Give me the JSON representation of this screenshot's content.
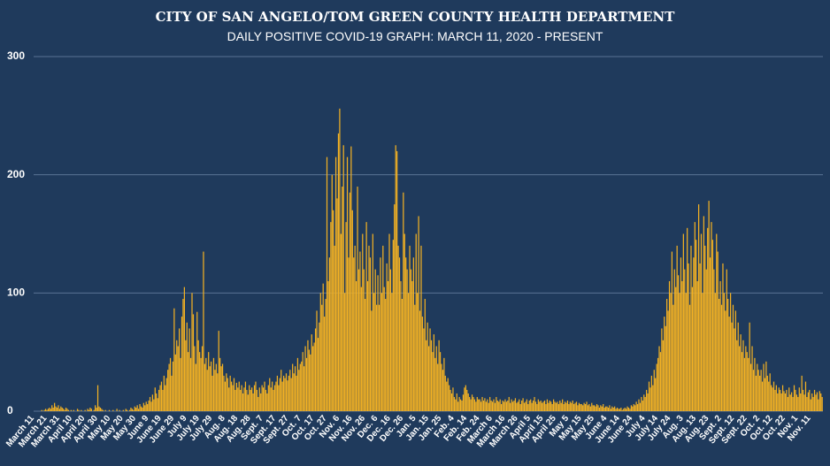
{
  "chart_data": {
    "type": "bar",
    "title": "CITY OF SAN ANGELO/TOM GREEN COUNTY HEALTH DEPARTMENT",
    "subtitle": "DAILY POSITIVE COVID-19 GRAPH: MARCH 11, 2020 - PRESENT",
    "color": "#f4b223",
    "grid": true,
    "ylim": [
      0,
      300
    ],
    "yticks": [
      0,
      100,
      200,
      300
    ],
    "categories": [
      "March 11",
      null,
      null,
      null,
      null,
      null,
      null,
      null,
      null,
      null,
      "March 21",
      null,
      null,
      null,
      null,
      null,
      null,
      null,
      null,
      null,
      "March 31",
      null,
      null,
      null,
      null,
      null,
      null,
      null,
      null,
      null,
      "April 10",
      null,
      null,
      null,
      null,
      null,
      null,
      null,
      null,
      null,
      "April 20",
      null,
      null,
      null,
      null,
      null,
      null,
      null,
      null,
      null,
      "April 30",
      null,
      null,
      null,
      null,
      null,
      null,
      null,
      null,
      null,
      "May 10",
      null,
      null,
      null,
      null,
      null,
      null,
      null,
      null,
      null,
      "May 20",
      null,
      null,
      null,
      null,
      null,
      null,
      null,
      null,
      null,
      "May 30",
      null,
      null,
      null,
      null,
      null,
      null,
      null,
      null,
      null,
      "June 9",
      null,
      null,
      null,
      null,
      null,
      null,
      null,
      null,
      null,
      "June 19",
      null,
      null,
      null,
      null,
      null,
      null,
      null,
      null,
      null,
      "June 29",
      null,
      null,
      null,
      null,
      null,
      null,
      null,
      null,
      null,
      "July 9",
      null,
      null,
      null,
      null,
      null,
      null,
      null,
      null,
      null,
      "July 19",
      null,
      null,
      null,
      null,
      null,
      null,
      null,
      null,
      null,
      "July 29",
      null,
      null,
      null,
      null,
      null,
      null,
      null,
      null,
      null,
      "Aug. 8",
      null,
      null,
      null,
      null,
      null,
      null,
      null,
      null,
      null,
      "Aug. 18",
      null,
      null,
      null,
      null,
      null,
      null,
      null,
      null,
      null,
      "Aug. 28",
      null,
      null,
      null,
      null,
      null,
      null,
      null,
      null,
      null,
      "Sept. 7",
      null,
      null,
      null,
      null,
      null,
      null,
      null,
      null,
      null,
      "Sept. 17",
      null,
      null,
      null,
      null,
      null,
      null,
      null,
      null,
      null,
      "Sept. 27",
      null,
      null,
      null,
      null,
      null,
      null,
      null,
      null,
      null,
      "Oct. 7",
      null,
      null,
      null,
      null,
      null,
      null,
      null,
      null,
      null,
      "Oct. 17",
      null,
      null,
      null,
      null,
      null,
      null,
      null,
      null,
      null,
      "Oct. 27",
      null,
      null,
      null,
      null,
      null,
      null,
      null,
      null,
      null,
      "Nov. 6",
      null,
      null,
      null,
      null,
      null,
      null,
      null,
      null,
      null,
      "Nov. 16",
      null,
      null,
      null,
      null,
      null,
      null,
      null,
      null,
      null,
      "Nov. 26",
      null,
      null,
      null,
      null,
      null,
      null,
      null,
      null,
      null,
      "Dec. 6",
      null,
      null,
      null,
      null,
      null,
      null,
      null,
      null,
      null,
      "Dec. 16",
      null,
      null,
      null,
      null,
      null,
      null,
      null,
      null,
      null,
      "Dec. 26",
      null,
      null,
      null,
      null,
      null,
      null,
      null,
      null,
      null,
      "Jan. 5",
      null,
      null,
      null,
      null,
      null,
      null,
      null,
      null,
      null,
      "Jan. 15",
      null,
      null,
      null,
      null,
      null,
      null,
      null,
      null,
      null,
      "Jan. 25",
      null,
      null,
      null,
      null,
      null,
      null,
      null,
      null,
      null,
      "Feb. 4",
      null,
      null,
      null,
      null,
      null,
      null,
      null,
      null,
      null,
      "Feb. 14",
      null,
      null,
      null,
      null,
      null,
      null,
      null,
      null,
      null,
      "Feb. 24",
      null,
      null,
      null,
      null,
      null,
      null,
      null,
      null,
      null,
      "March 6",
      null,
      null,
      null,
      null,
      null,
      null,
      null,
      null,
      null,
      "March 16",
      null,
      null,
      null,
      null,
      null,
      null,
      null,
      null,
      null,
      "March 26",
      null,
      null,
      null,
      null,
      null,
      null,
      null,
      null,
      null,
      "April 5",
      null,
      null,
      null,
      null,
      null,
      null,
      null,
      null,
      null,
      "April 15",
      null,
      null,
      null,
      null,
      null,
      null,
      null,
      null,
      null,
      "April 25",
      null,
      null,
      null,
      null,
      null,
      null,
      null,
      null,
      null,
      "May 5",
      null,
      null,
      null,
      null,
      null,
      null,
      null,
      null,
      null,
      "May 15",
      null,
      null,
      null,
      null,
      null,
      null,
      null,
      null,
      null,
      "May 25",
      null,
      null,
      null,
      null,
      null,
      null,
      null,
      null,
      null,
      "June 4",
      null,
      null,
      null,
      null,
      null,
      null,
      null,
      null,
      null,
      "June 14",
      null,
      null,
      null,
      null,
      null,
      null,
      null,
      null,
      null,
      "June 24",
      null,
      null,
      null,
      null,
      null,
      null,
      null,
      null,
      null,
      "July 4",
      null,
      null,
      null,
      null,
      null,
      null,
      null,
      null,
      null,
      "July 14",
      null,
      null,
      null,
      null,
      null,
      null,
      null,
      null,
      null,
      "July 24",
      null,
      null,
      null,
      null,
      null,
      null,
      null,
      null,
      null,
      "Aug. 3",
      null,
      null,
      null,
      null,
      null,
      null,
      null,
      null,
      null,
      "Aug. 13",
      null,
      null,
      null,
      null,
      null,
      null,
      null,
      null,
      null,
      "Aug. 23",
      null,
      null,
      null,
      null,
      null,
      null,
      null,
      null,
      null,
      "Sept. 2",
      null,
      null,
      null,
      null,
      null,
      null,
      null,
      null,
      null,
      "Sept. 12",
      null,
      null,
      null,
      null,
      null,
      null,
      null,
      null,
      null,
      "Sept. 22",
      null,
      null,
      null,
      null,
      null,
      null,
      null,
      null,
      null,
      "Oct. 2",
      null,
      null,
      null,
      null,
      null,
      null,
      null,
      null,
      null,
      "Oct. 12",
      null,
      null,
      null,
      null,
      null,
      null,
      null,
      null,
      null,
      "Oct. 22",
      null,
      null,
      null,
      null,
      null,
      null,
      null,
      null,
      null,
      "Nov. 1",
      null,
      null,
      null,
      null,
      null,
      null,
      null,
      null,
      null,
      "Nov. 11",
      null,
      null,
      null,
      null,
      null,
      null,
      null,
      null,
      null
    ],
    "values": [
      0,
      0,
      0,
      0,
      0,
      0,
      1,
      0,
      1,
      2,
      1,
      2,
      3,
      2,
      5,
      3,
      7,
      4,
      3,
      5,
      2,
      4,
      3,
      2,
      1,
      3,
      2,
      1,
      0,
      1,
      0,
      1,
      0,
      0,
      2,
      1,
      0,
      1,
      0,
      0,
      1,
      0,
      2,
      1,
      3,
      2,
      0,
      1,
      5,
      3,
      22,
      4,
      3,
      2,
      1,
      0,
      1,
      0,
      0,
      1,
      0,
      0,
      1,
      0,
      0,
      2,
      0,
      1,
      0,
      0,
      1,
      0,
      2,
      1,
      0,
      1,
      3,
      2,
      1,
      4,
      3,
      5,
      2,
      6,
      4,
      3,
      7,
      5,
      8,
      6,
      9,
      12,
      8,
      14,
      10,
      20,
      15,
      11,
      18,
      22,
      25,
      18,
      30,
      22,
      28,
      35,
      40,
      45,
      30,
      42,
      87,
      48,
      60,
      55,
      70,
      45,
      80,
      95,
      105,
      60,
      75,
      50,
      70,
      45,
      100,
      82,
      55,
      40,
      84,
      60,
      50,
      45,
      55,
      135,
      40,
      45,
      35,
      50,
      38,
      42,
      30,
      45,
      35,
      40,
      32,
      68,
      45,
      38,
      40,
      30,
      25,
      32,
      28,
      20,
      30,
      25,
      22,
      28,
      18,
      24,
      20,
      25,
      18,
      22,
      15,
      20,
      25,
      18,
      14,
      22,
      18,
      20,
      15,
      22,
      25,
      18,
      12,
      20,
      15,
      22,
      20,
      25,
      18,
      15,
      22,
      28,
      20,
      25,
      18,
      22,
      25,
      30,
      22,
      28,
      35,
      25,
      30,
      28,
      32,
      26,
      30,
      35,
      28,
      40,
      32,
      38,
      30,
      45,
      35,
      40,
      42,
      50,
      38,
      55,
      45,
      60,
      52,
      48,
      65,
      55,
      58,
      70,
      85,
      62,
      75,
      100,
      90,
      108,
      80,
      95,
      215,
      110,
      130,
      160,
      200,
      170,
      140,
      215,
      180,
      235,
      256,
      150,
      190,
      225,
      100,
      160,
      215,
      130,
      185,
      224,
      170,
      130,
      140,
      110,
      190,
      120,
      135,
      105,
      150,
      120,
      95,
      160,
      110,
      140,
      130,
      85,
      150,
      100,
      120,
      90,
      115,
      90,
      130,
      100,
      140,
      105,
      95,
      125,
      110,
      150,
      120,
      100,
      145,
      175,
      225,
      220,
      140,
      130,
      110,
      95,
      185,
      150,
      130,
      120,
      100,
      140,
      120,
      110,
      130,
      90,
      150,
      100,
      165,
      85,
      140,
      80,
      70,
      95,
      60,
      75,
      55,
      70,
      60,
      50,
      65,
      45,
      55,
      40,
      60,
      50,
      40,
      35,
      45,
      30,
      25,
      28,
      22,
      18,
      15,
      20,
      12,
      10,
      15,
      8,
      12,
      10,
      9,
      14,
      20,
      22,
      18,
      15,
      12,
      10,
      14,
      12,
      10,
      8,
      12,
      10,
      10,
      8,
      12,
      9,
      11,
      8,
      10,
      7,
      12,
      9,
      8,
      10,
      7,
      12,
      9,
      8,
      10,
      6,
      9,
      8,
      10,
      8,
      9,
      12,
      7,
      10,
      8,
      9,
      11,
      7,
      8,
      10,
      6,
      9,
      11,
      7,
      8,
      10,
      6,
      9,
      10,
      7,
      9,
      12,
      8,
      6,
      10,
      8,
      9,
      7,
      8,
      9,
      6,
      10,
      7,
      9,
      8,
      6,
      10,
      8,
      7,
      8,
      6,
      9,
      7,
      10,
      6,
      8,
      7,
      9,
      6,
      8,
      7,
      9,
      6,
      7,
      8,
      5,
      7,
      6,
      6,
      5,
      7,
      6,
      8,
      5,
      6,
      4,
      7,
      5,
      5,
      4,
      6,
      5,
      3,
      5,
      4,
      6,
      3,
      4,
      4,
      3,
      5,
      2,
      4,
      3,
      4,
      2,
      3,
      2,
      2,
      3,
      1,
      2,
      3,
      2,
      4,
      3,
      2,
      5,
      4,
      6,
      5,
      8,
      6,
      10,
      7,
      12,
      9,
      14,
      12,
      18,
      15,
      25,
      20,
      30,
      22,
      35,
      28,
      40,
      45,
      55,
      50,
      70,
      60,
      80,
      72,
      95,
      85,
      110,
      100,
      135,
      90,
      120,
      105,
      140,
      115,
      100,
      130,
      110,
      150,
      120,
      100,
      155,
      125,
      90,
      140,
      105,
      130,
      160,
      145,
      110,
      175,
      125,
      150,
      100,
      165,
      140,
      120,
      155,
      178,
      130,
      160,
      145,
      120,
      100,
      150,
      135,
      95,
      110,
      90,
      125,
      100,
      85,
      120,
      95,
      80,
      100,
      75,
      90,
      70,
      85,
      60,
      75,
      55,
      65,
      50,
      60,
      45,
      55,
      50,
      45,
      75,
      40,
      55,
      35,
      45,
      30,
      40,
      35,
      30,
      35,
      25,
      40,
      28,
      42,
      30,
      25,
      32,
      22,
      20,
      25,
      18,
      22,
      15,
      20,
      18,
      15,
      22,
      17,
      15,
      18,
      12,
      20,
      14,
      16,
      12,
      22,
      18,
      14,
      12,
      20,
      15,
      30,
      18,
      14,
      25,
      12,
      16,
      18,
      10,
      15,
      12,
      18,
      14,
      16,
      10,
      17,
      15,
      12
    ]
  }
}
